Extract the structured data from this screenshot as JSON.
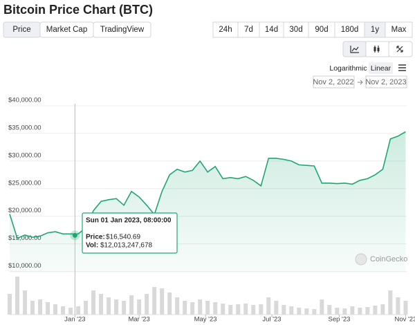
{
  "header": {
    "title": "Bitcoin Price Chart (BTC)",
    "tabs": [
      "Price",
      "Market Cap",
      "TradingView"
    ],
    "active_tab": 0,
    "ranges": [
      "24h",
      "7d",
      "14d",
      "30d",
      "90d",
      "180d",
      "1y",
      "Max"
    ],
    "active_range": 6,
    "scales": [
      "Logarithmic",
      "Linear"
    ],
    "active_scale": 1,
    "date_from": "Nov 2, 2022",
    "date_to": "Nov 2, 2023"
  },
  "chart_data": {
    "type": "line",
    "color": "#1fa672",
    "volume_color": "#d9d9d9",
    "x": [
      0,
      7,
      14,
      21,
      28,
      35,
      42,
      49,
      56,
      63,
      70,
      77,
      84,
      91,
      98,
      105,
      112,
      119,
      126,
      133,
      140,
      147,
      154,
      161,
      168,
      175,
      182,
      189,
      196,
      203,
      210,
      217,
      224,
      231,
      238,
      245,
      252,
      259,
      266,
      273,
      280,
      287,
      294,
      301,
      308,
      315,
      322,
      329,
      336,
      343,
      350,
      357,
      364
    ],
    "values": [
      20400,
      16000,
      16600,
      16200,
      16400,
      17000,
      17200,
      16800,
      16800,
      16800,
      17900,
      21000,
      22700,
      23000,
      23200,
      22000,
      24500,
      23500,
      22000,
      20300,
      24500,
      27500,
      28500,
      28000,
      28300,
      30000,
      28000,
      29000,
      26800,
      27000,
      26800,
      27200,
      26500,
      25500,
      30500,
      30500,
      30300,
      30000,
      29300,
      29200,
      29100,
      26000,
      26000,
      25900,
      26000,
      25800,
      26500,
      26800,
      27500,
      28500,
      34000,
      34500,
      35300
    ],
    "volume": [
      30000000000,
      55000000000,
      35000000000,
      20000000000,
      22000000000,
      18000000000,
      15000000000,
      12000000000,
      10000000000,
      12000000000,
      20000000000,
      35000000000,
      30000000000,
      25000000000,
      22000000000,
      20000000000,
      28000000000,
      22000000000,
      30000000000,
      40000000000,
      38000000000,
      32000000000,
      25000000000,
      20000000000,
      18000000000,
      22000000000,
      20000000000,
      18000000000,
      16000000000,
      14000000000,
      15000000000,
      16000000000,
      14000000000,
      15000000000,
      25000000000,
      20000000000,
      14000000000,
      12000000000,
      10000000000,
      9000000000,
      8000000000,
      22000000000,
      14000000000,
      10000000000,
      9000000000,
      12000000000,
      10000000000,
      11000000000,
      13000000000,
      15000000000,
      35000000000,
      25000000000,
      20000000000
    ],
    "xlim": [
      0,
      365
    ],
    "ylim": [
      9700,
      42000
    ],
    "y2lim": [
      0,
      60000000000
    ],
    "xticks": [
      {
        "value": 60,
        "label": "Jan '23"
      },
      {
        "value": 119,
        "label": "Mar '23"
      },
      {
        "value": 180,
        "label": "May '23"
      },
      {
        "value": 241,
        "label": "Jul '23"
      },
      {
        "value": 303,
        "label": "Sep '23"
      },
      {
        "value": 364,
        "label": "Nov '23"
      }
    ],
    "yticks": [
      {
        "value": 10000,
        "label": "$10,000.00"
      },
      {
        "value": 15000,
        "label": "$15,000.00"
      },
      {
        "value": 20000,
        "label": "$20,000.00"
      },
      {
        "value": 25000,
        "label": "$25,000.00"
      },
      {
        "value": 30000,
        "label": "$30,000.00"
      },
      {
        "value": 35000,
        "label": "$35,000.00"
      },
      {
        "value": 40000,
        "label": "$40,000.00"
      }
    ],
    "grid": true,
    "tooltip": {
      "x": 60,
      "title": "Sun 01 Jan 2023, 08:00:00",
      "price_label": "Price:",
      "price": 16540.69,
      "price_text": "$16,540.69",
      "vol_label": "Vol:",
      "vol": 12013247678,
      "vol_text": "$12,013,247,678"
    },
    "watermark": "CoinGecko"
  }
}
